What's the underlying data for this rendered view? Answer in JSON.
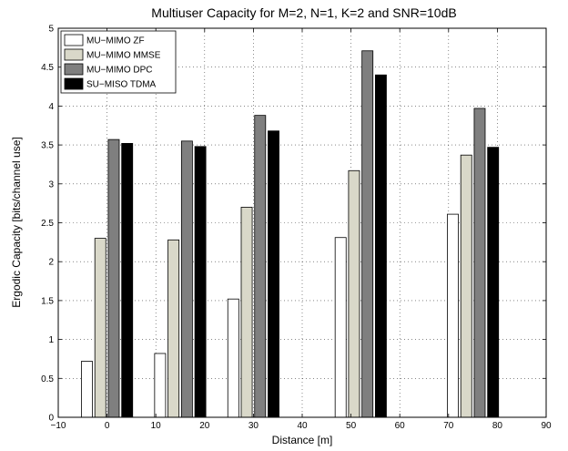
{
  "chart_data": {
    "type": "bar",
    "title": "Multiuser Capacity for M=2, N=1, K=2 and SNR=10dB",
    "xlabel": "Distance [m]",
    "ylabel": "Ergodic Capacity [bits/channel use]",
    "xlim": [
      -10,
      90
    ],
    "ylim": [
      0,
      5
    ],
    "xticks": [
      -10,
      0,
      10,
      20,
      30,
      40,
      50,
      60,
      70,
      80,
      90
    ],
    "yticks": [
      0,
      0.5,
      1,
      1.5,
      2,
      2.5,
      3,
      3.5,
      4,
      4.5,
      5
    ],
    "xtick_labels": [
      "−10",
      "0",
      "10",
      "20",
      "30",
      "40",
      "50",
      "60",
      "70",
      "80",
      "90"
    ],
    "ytick_labels": [
      "0",
      "0.5",
      "1",
      "1.5",
      "2",
      "2.5",
      "3",
      "3.5",
      "4",
      "4.5",
      "5"
    ],
    "grid": true,
    "legend_position": "top-left",
    "categories": [
      0,
      15,
      30,
      52,
      75
    ],
    "series": [
      {
        "name": "MU−MIMO ZF",
        "color": "#ffffff",
        "values": [
          0.72,
          0.82,
          1.52,
          2.31,
          2.61
        ]
      },
      {
        "name": "MU−MIMO MMSE",
        "color": "#d9d8c9",
        "values": [
          2.3,
          2.28,
          2.7,
          3.17,
          3.37
        ]
      },
      {
        "name": "MU−MIMO DPC",
        "color": "#7f7f7f",
        "values": [
          3.57,
          3.55,
          3.88,
          4.71,
          3.97
        ]
      },
      {
        "name": "SU−MISO TDMA",
        "color": "#000000",
        "values": [
          3.52,
          3.48,
          3.68,
          4.4,
          3.47
        ]
      }
    ]
  }
}
